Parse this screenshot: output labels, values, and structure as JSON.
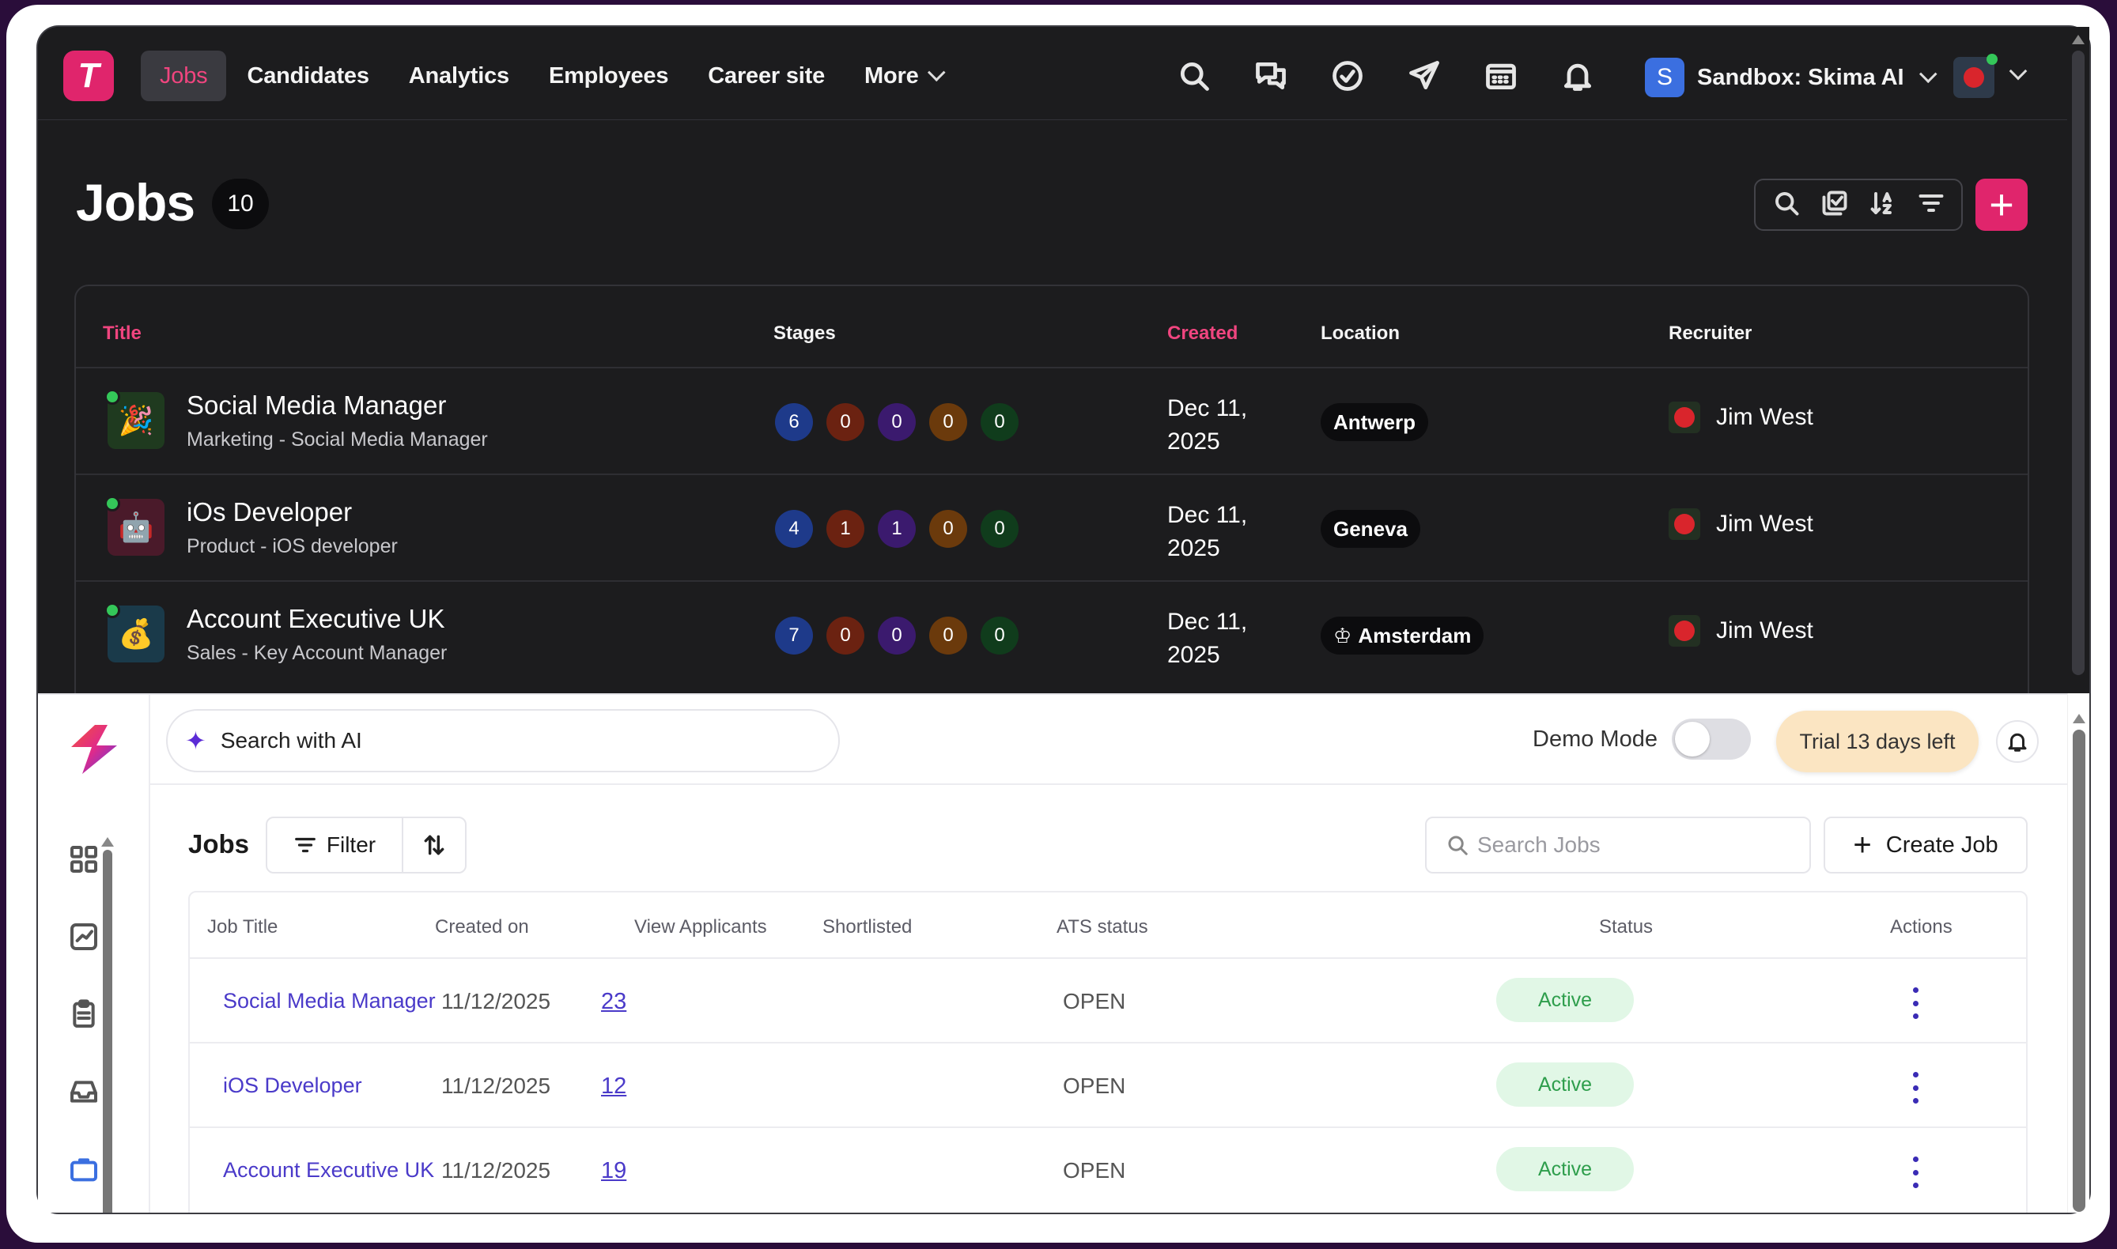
{
  "top_app": {
    "logo_letter": "T",
    "nav": [
      {
        "label": "Jobs",
        "active": true
      },
      {
        "label": "Candidates"
      },
      {
        "label": "Analytics"
      },
      {
        "label": "Employees"
      },
      {
        "label": "Career site"
      },
      {
        "label": "More"
      }
    ],
    "top_icons": [
      "search-icon",
      "chat-icon",
      "check-circle-icon",
      "send-icon",
      "calendar-icon",
      "bell-icon"
    ],
    "workspace": {
      "badge": "S",
      "name": "Sandbox: Skima AI"
    },
    "page_title": "Jobs",
    "job_count": "10",
    "columns": {
      "title": "Title",
      "stages": "Stages",
      "created": "Created",
      "location": "Location",
      "recruiter": "Recruiter"
    },
    "jobs": [
      {
        "title": "Social Media Manager",
        "subtitle": "Marketing - Social Media Manager",
        "icon": "🎉",
        "icon_bg": "#1f3a1f",
        "stages": [
          "6",
          "0",
          "0",
          "0",
          "0"
        ],
        "created_line1": "Dec 11,",
        "created_line2": "2025",
        "location": "Antwerp",
        "location_crown": false,
        "recruiter": "Jim West"
      },
      {
        "title": "iOs Developer",
        "subtitle": "Product - iOS developer",
        "icon": "🤖",
        "icon_bg": "#4a1a2a",
        "stages": [
          "4",
          "1",
          "1",
          "0",
          "0"
        ],
        "created_line1": "Dec 11,",
        "created_line2": "2025",
        "location": "Geneva",
        "location_crown": false,
        "recruiter": "Jim West"
      },
      {
        "title": "Account Executive UK",
        "subtitle": "Sales - Key Account Manager",
        "icon": "💰",
        "icon_bg": "#1a3a4a",
        "stages": [
          "7",
          "0",
          "0",
          "0",
          "0"
        ],
        "created_line1": "Dec 11,",
        "created_line2": "2025",
        "location": "Amsterdam",
        "location_crown": true,
        "recruiter": "Jim West"
      }
    ],
    "accent_color": "#e0256c"
  },
  "bottom_app": {
    "search_ai_label": "Search with AI",
    "demo_mode_label": "Demo Mode",
    "demo_mode_on": false,
    "trial_label": "Trial 13 days left",
    "section_title": "Jobs",
    "filter_label": "Filter",
    "search_placeholder": "Search Jobs",
    "create_label": "Create Job",
    "columns": {
      "job_title": "Job Title",
      "created_on": "Created on",
      "view_applicants": "View Applicants",
      "shortlisted": "Shortlisted",
      "ats_status": "ATS status",
      "status": "Status",
      "actions": "Actions"
    },
    "jobs": [
      {
        "title": "Social Media Manager",
        "created_on": "11/12/2025",
        "applicants": "23",
        "shortlisted": "",
        "ats_status": "OPEN",
        "status": "Active"
      },
      {
        "title": "iOS Developer",
        "created_on": "11/12/2025",
        "applicants": "12",
        "shortlisted": "",
        "ats_status": "OPEN",
        "status": "Active"
      },
      {
        "title": "Account Executive UK",
        "created_on": "11/12/2025",
        "applicants": "19",
        "shortlisted": "",
        "ats_status": "OPEN",
        "status": "Active"
      }
    ],
    "sidebar_icons": [
      "grid-icon",
      "chart-icon",
      "clipboard-icon",
      "inbox-icon",
      "briefcase-icon"
    ]
  }
}
